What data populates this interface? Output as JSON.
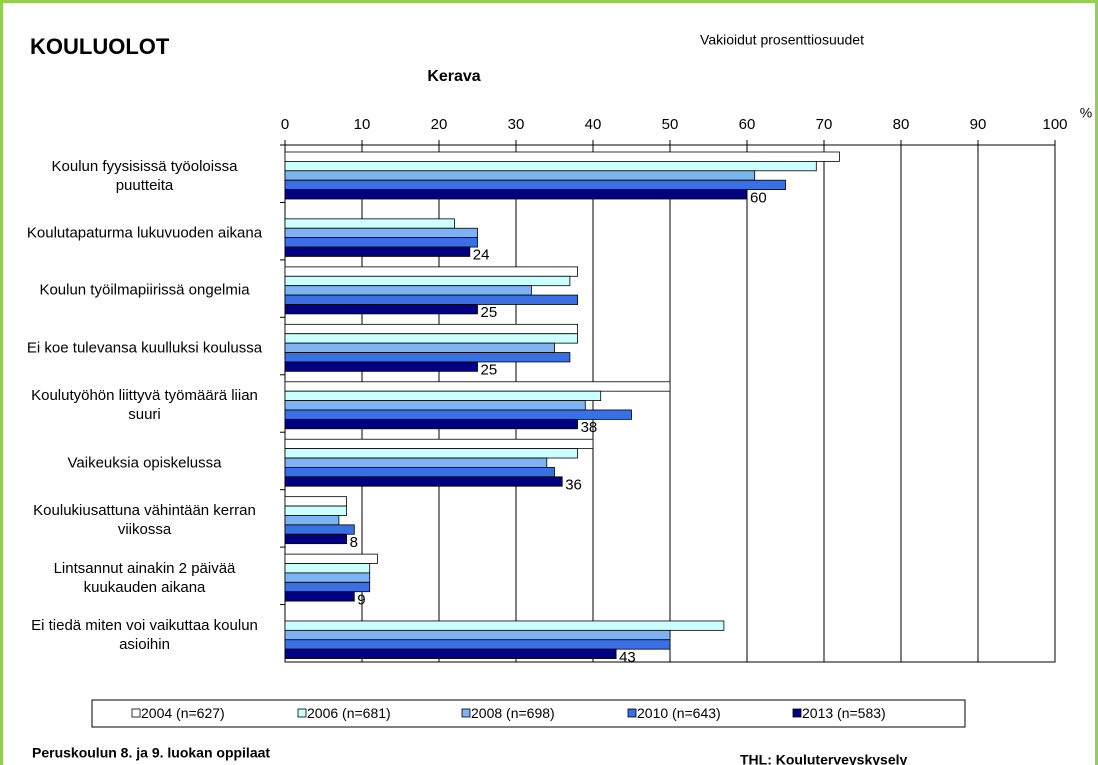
{
  "chart_data": {
    "type": "hbar",
    "title": "KOULUOLOT",
    "subtitle": "Vakioidut prosenttiosuudet",
    "chart_title": "Kerava",
    "x_unit": "%",
    "footer_left": "Peruskoulun 8. ja 9. luokan oppilaat",
    "footer_right": "THL: Kouluterveyskysely",
    "categories": [
      "Koulun fyysisissä työoloissa puutteita",
      "Koulutapaturma lukuvuoden aikana",
      "Koulun työilmapiirissä ongelmia",
      "Ei koe tulevansa kuulluksi koulussa",
      "Koulutyöhön liittyvä työmäärä liian suuri",
      "Vaikeuksia opiskelussa",
      "Koulukiusattuna vähintään kerran viikossa",
      "Lintsannut ainakin 2 päivää kuukauden aikana",
      "Ei tiedä miten voi vaikuttaa koulun asioihin"
    ],
    "series": [
      {
        "name": "2004 (n=627)",
        "color": "#ffffff",
        "values": [
          72,
          null,
          38,
          38,
          50,
          40,
          8,
          12,
          null
        ]
      },
      {
        "name": "2006 (n=681)",
        "color": "#ccffff",
        "values": [
          69,
          22,
          37,
          38,
          41,
          38,
          8,
          11,
          57
        ]
      },
      {
        "name": "2008 (n=698)",
        "color": "#7fb2f0",
        "values": [
          61,
          25,
          32,
          35,
          39,
          34,
          7,
          11,
          50
        ]
      },
      {
        "name": "2010 (n=643)",
        "color": "#3b6fe6",
        "values": [
          65,
          25,
          38,
          37,
          45,
          35,
          9,
          11,
          50
        ]
      },
      {
        "name": "2013 (n=583)",
        "color": "#000080",
        "values": [
          60,
          24,
          25,
          25,
          38,
          36,
          8,
          9,
          43
        ],
        "show_labels": true
      }
    ],
    "xlim": [
      0,
      100
    ],
    "xticks": [
      0,
      10,
      20,
      30,
      40,
      50,
      60,
      70,
      80,
      90,
      100
    ],
    "grid": true,
    "legend": "bottom"
  }
}
